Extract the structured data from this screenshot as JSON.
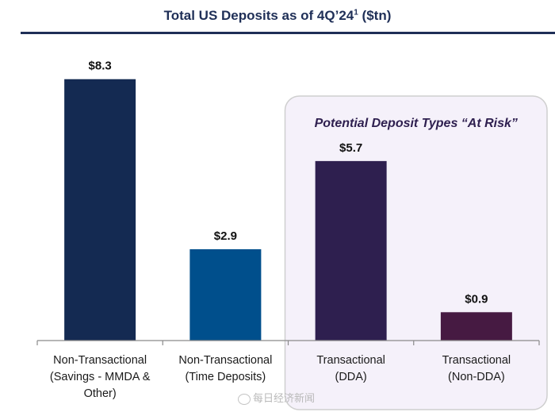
{
  "title": {
    "text": "Total US Deposits as of 4Q’24",
    "superscript": "1",
    "unit": "($tn)"
  },
  "watermark": "每日经济新闻",
  "chart_data": {
    "type": "bar",
    "categories": [
      [
        "Non-Transactional",
        "(Savings - MMDA &",
        "Other)"
      ],
      [
        "Non-Transactional",
        "(Time Deposits)"
      ],
      [
        "Transactional",
        "(DDA)"
      ],
      [
        "Transactional",
        "(Non-DDA)"
      ]
    ],
    "values": [
      8.3,
      2.9,
      5.7,
      0.9
    ],
    "value_labels": [
      "$8.3",
      "$2.9",
      "$5.7",
      "$0.9"
    ],
    "colors": [
      "#142a52",
      "#004f8c",
      "#2e1f4f",
      "#461a42"
    ],
    "ylim": [
      0,
      9.1
    ],
    "grid": false,
    "annotations": [
      {
        "text": "Potential Deposit Types “At Risk”",
        "covers_categories": [
          2,
          3
        ],
        "background": "#f5f1fa",
        "border": "#cfcfcf"
      }
    ]
  }
}
